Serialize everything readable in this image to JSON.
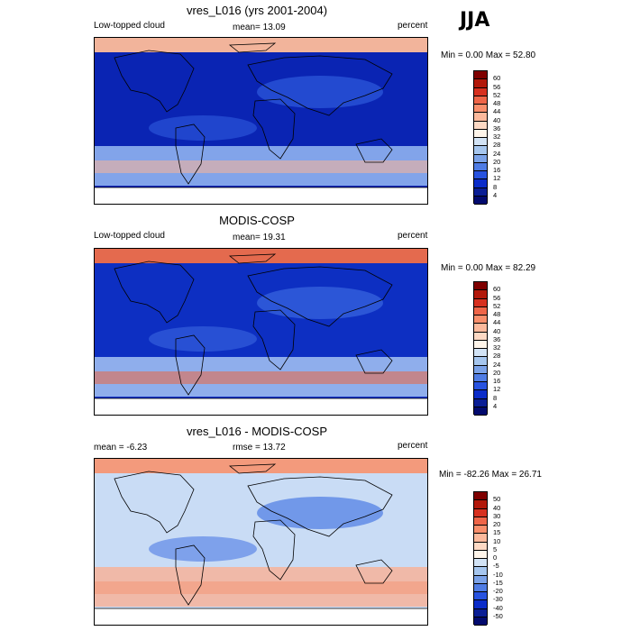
{
  "season": "JJA",
  "panels": [
    {
      "title": "vres_L016 (yrs 2001-2004)",
      "left_label": "Low-topped cloud",
      "center_label": "mean=  13.09",
      "right_label": "percent",
      "minmax": "Min =   0.00 Max =  52.80",
      "colorbar": {
        "labels": [
          "60",
          "56",
          "52",
          "48",
          "44",
          "40",
          "36",
          "32",
          "28",
          "24",
          "20",
          "16",
          "12",
          "8",
          "4"
        ],
        "colors": [
          "#7f0000",
          "#b2180a",
          "#d7301f",
          "#ef6548",
          "#f98e6b",
          "#fcb99c",
          "#fdd9c4",
          "#fff5ea",
          "#d2e3f5",
          "#a6c6ee",
          "#7ba2e8",
          "#4f7ce4",
          "#2853e0",
          "#0b2cc9",
          "#0a1e95",
          "#020a6e"
        ]
      },
      "map": {
        "ocean": "#0a24b3",
        "band1": "#2e5bdd",
        "band2": "#8fb3ef",
        "polar": "#f2b49b"
      }
    },
    {
      "title": "MODIS-COSP",
      "left_label": "Low-topped cloud",
      "center_label": "mean=  19.31",
      "right_label": "percent",
      "minmax": "Min =   0.00 Max =  82.29",
      "colorbar": {
        "labels": [
          "60",
          "56",
          "52",
          "48",
          "44",
          "40",
          "36",
          "32",
          "28",
          "24",
          "20",
          "16",
          "12",
          "8",
          "4"
        ],
        "colors": [
          "#7f0000",
          "#b2180a",
          "#d7301f",
          "#ef6548",
          "#f98e6b",
          "#fcb99c",
          "#fdd9c4",
          "#fff5ea",
          "#d2e3f5",
          "#a6c6ee",
          "#7ba2e8",
          "#4f7ce4",
          "#2853e0",
          "#0b2cc9",
          "#0a1e95",
          "#020a6e"
        ]
      },
      "map": {
        "ocean": "#0d2fc2",
        "band1": "#3a67e0",
        "band2": "#9dbcf1",
        "polar": "#e46a4e"
      }
    },
    {
      "title": "vres_L016 - MODIS-COSP",
      "left_label": "mean =  -6.23",
      "center_label": "rmse =  13.72",
      "right_label": "percent",
      "minmax": "Min = -82.26 Max =  26.71",
      "colorbar": {
        "labels": [
          "50",
          "40",
          "30",
          "20",
          "15",
          "10",
          "5",
          "0",
          "-5",
          "-10",
          "-15",
          "-20",
          "-30",
          "-40",
          "-50"
        ],
        "colors": [
          "#7f0000",
          "#b2180a",
          "#d7301f",
          "#ef6548",
          "#f98e6b",
          "#fcb99c",
          "#fdd9c4",
          "#fff5ea",
          "#d2e3f5",
          "#a6c6ee",
          "#7ba2e8",
          "#4f7ce4",
          "#2853e0",
          "#0b2cc9",
          "#0a1e95",
          "#020a6e"
        ]
      },
      "map": {
        "ocean": "#c9dcf5",
        "band1": "#4c7ae4",
        "band2": "#f4b5a0",
        "polar": "#f39a7c"
      }
    }
  ]
}
